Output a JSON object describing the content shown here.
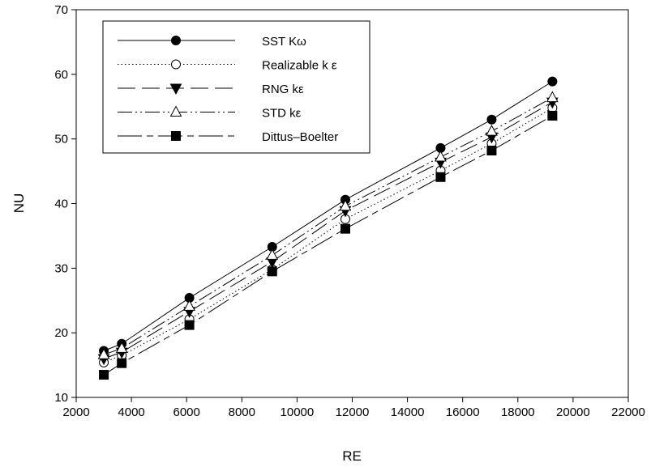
{
  "chart_data": {
    "type": "line",
    "title": "",
    "xlabel": "RE",
    "ylabel": "NU",
    "xlim": [
      2000,
      22000
    ],
    "ylim": [
      10,
      70
    ],
    "xticks": [
      2000,
      4000,
      6000,
      8000,
      10000,
      12000,
      14000,
      16000,
      18000,
      20000,
      22000
    ],
    "yticks": [
      10,
      20,
      30,
      40,
      50,
      60,
      70
    ],
    "grid": false,
    "legend_position": "top-left",
    "x": [
      3000,
      3650,
      6100,
      9100,
      11750,
      15200,
      17050,
      19250
    ],
    "series": [
      {
        "name": "SST Kω",
        "marker": "filled-circle",
        "dash": "solid",
        "values": [
          17.2,
          18.3,
          25.4,
          33.3,
          40.6,
          48.6,
          53.0,
          58.9
        ]
      },
      {
        "name": "Realizable k ε",
        "marker": "open-circle",
        "dash": "dotted",
        "values": [
          15.4,
          16.5,
          22.1,
          29.8,
          37.6,
          45.1,
          49.3,
          54.8
        ]
      },
      {
        "name": "RNG kε",
        "marker": "filled-triangle-down",
        "dash": "long-dash",
        "values": [
          16.0,
          17.0,
          23.3,
          31.0,
          38.9,
          46.4,
          50.3,
          55.7
        ]
      },
      {
        "name": "STD kε",
        "marker": "open-triangle-up",
        "dash": "dash-dot-dot",
        "values": [
          16.6,
          17.6,
          24.1,
          32.0,
          39.6,
          47.2,
          51.2,
          56.4
        ]
      },
      {
        "name": "Dittus–Boelter",
        "marker": "filled-square",
        "dash": "long-dash-short",
        "values": [
          13.5,
          15.3,
          21.2,
          29.5,
          36.1,
          44.1,
          48.2,
          53.6
        ]
      }
    ]
  }
}
